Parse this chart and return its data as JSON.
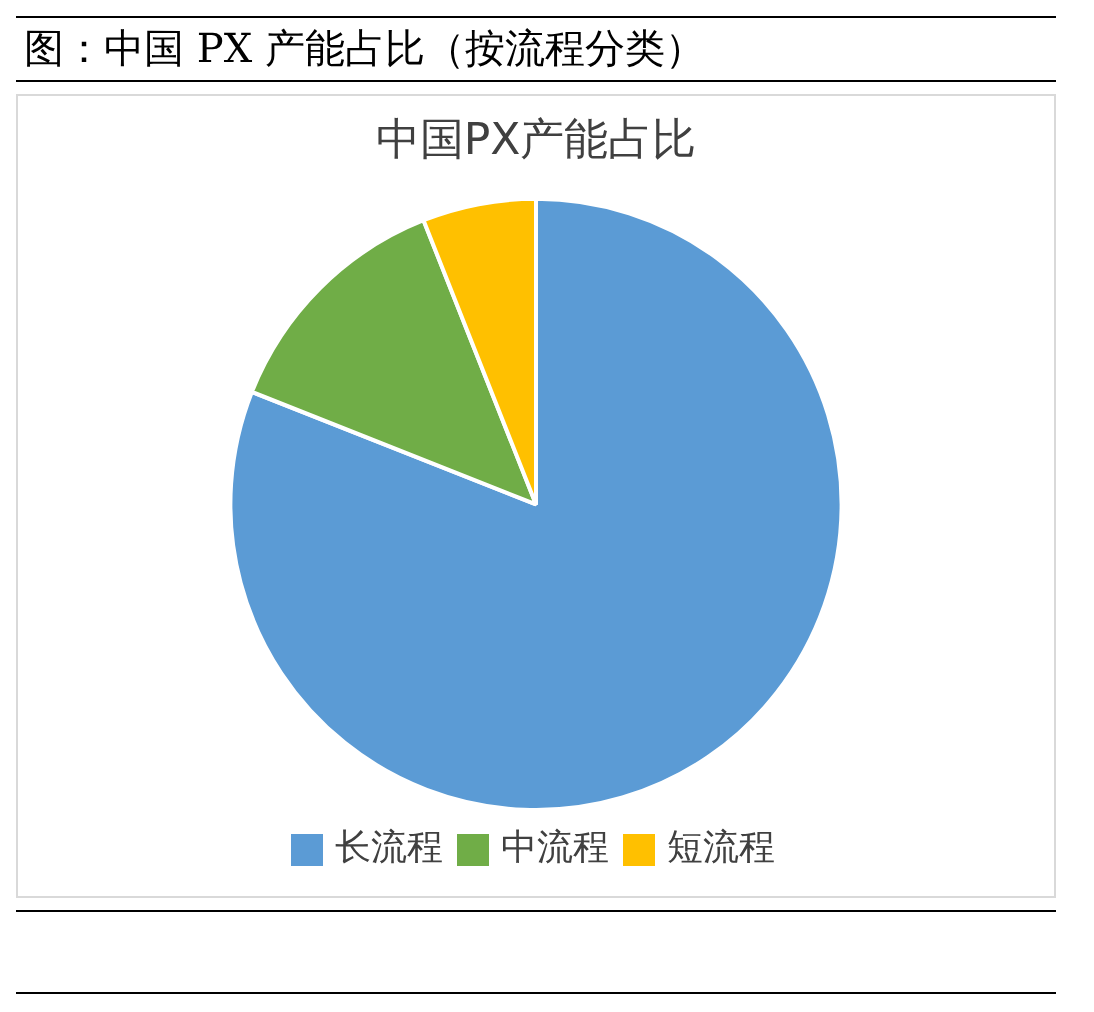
{
  "chart_data": {
    "type": "pie",
    "title": "图：中国 PX 产能占比（按流程分类）",
    "subtitle": "中国PX产能占比",
    "categories": [
      "长流程",
      "中流程",
      "短流程"
    ],
    "values": [
      81,
      13,
      6
    ],
    "colors": [
      "#5b9bd5",
      "#70ad47",
      "#ffc000"
    ],
    "legend": "bottom"
  }
}
